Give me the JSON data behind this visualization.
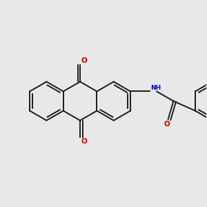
{
  "background_color": "#e8e8e8",
  "bond_color": "#1a1a1a",
  "oxygen_color": "#cc0000",
  "nitrogen_color": "#0000cc",
  "bond_width": 1.4,
  "figsize": [
    3.0,
    3.0
  ],
  "dpi": 100,
  "xlim": [
    -0.52,
    0.75
  ],
  "ylim": [
    0.05,
    0.98
  ]
}
